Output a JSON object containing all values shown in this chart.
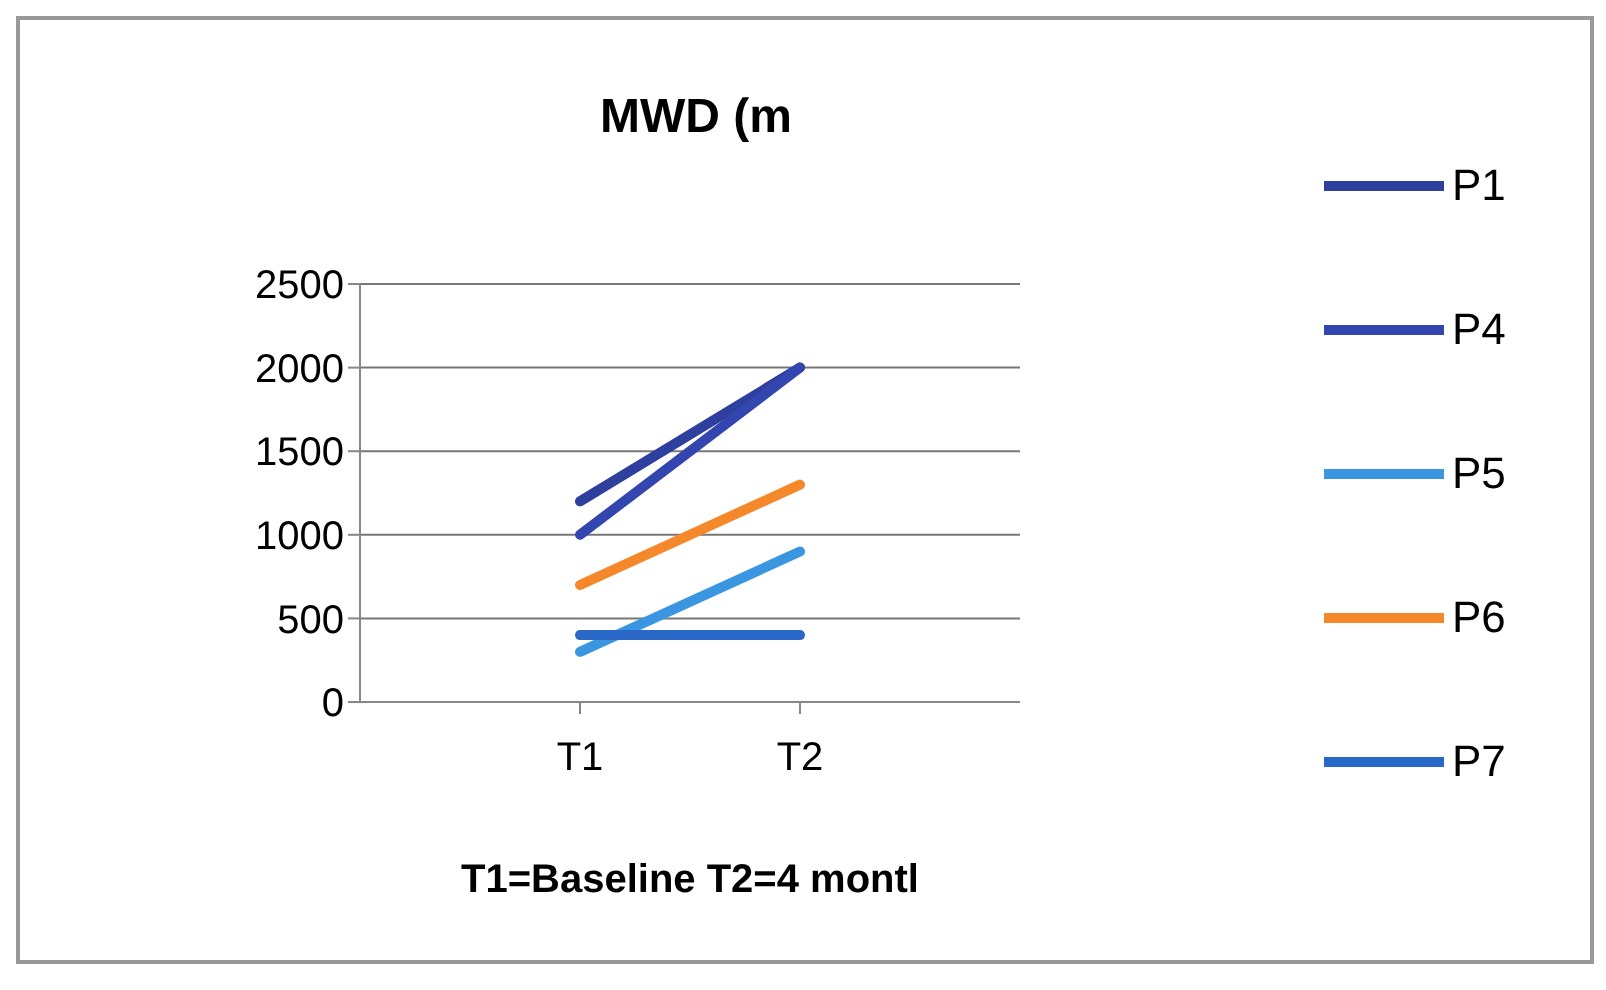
{
  "chart_data": {
    "type": "line",
    "title": "MWD (m",
    "xlabel": "T1=Baseline   T2=4 montl",
    "categories": [
      "T1",
      "T2"
    ],
    "series": [
      {
        "name": "P1",
        "color": "#2e3f9e",
        "values": [
          1200,
          2000
        ]
      },
      {
        "name": "P4",
        "color": "#3346b0",
        "values": [
          1000,
          2000
        ]
      },
      {
        "name": "P5",
        "color": "#3a96e0",
        "values": [
          300,
          900
        ]
      },
      {
        "name": "P6",
        "color": "#f5882a",
        "values": [
          700,
          1300
        ]
      },
      {
        "name": "P7",
        "color": "#2a68c8",
        "values": [
          400,
          400
        ]
      }
    ],
    "ylim": [
      0,
      2500
    ],
    "yticks": [
      0,
      500,
      1000,
      1500,
      2000,
      2500
    ],
    "grid": "y",
    "legend": "right",
    "marker": "none",
    "line_style": "solid"
  }
}
